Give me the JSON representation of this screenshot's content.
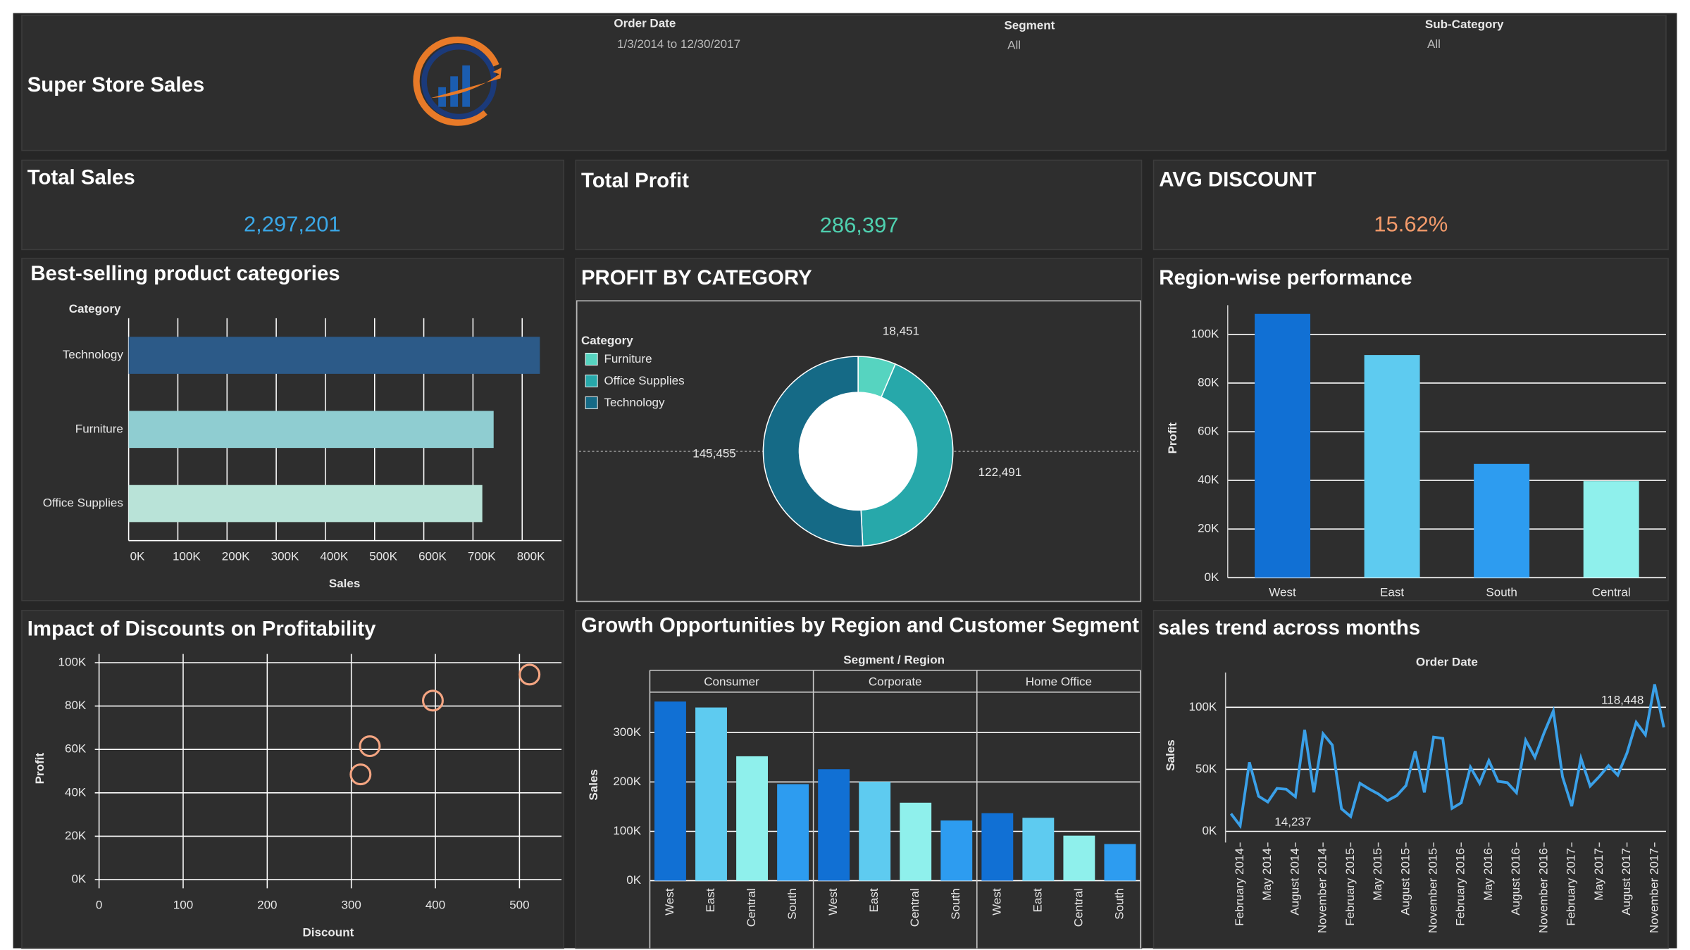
{
  "header": {
    "title": "Super Store Sales",
    "filters": [
      {
        "label": "Order Date",
        "value": "1/3/2014 to 12/30/2017"
      },
      {
        "label": "Segment",
        "value": "All"
      },
      {
        "label": "Sub-Category",
        "value": "All"
      }
    ]
  },
  "kpis": [
    {
      "title": "Total Sales",
      "value": "2,297,201",
      "color": "#3aa8e8"
    },
    {
      "title": "Total Profit",
      "value": "286,397",
      "color": "#4fd1b0"
    },
    {
      "title": "AVG DISCOUNT",
      "value": "15.62%",
      "color": "#f49b6b"
    }
  ],
  "chart_data": [
    {
      "type": "hbar",
      "title": "Best-selling product categories",
      "category_label": "Category",
      "x_label": "Sales",
      "categories": [
        "Technology",
        "Furniture",
        "Office Supplies"
      ],
      "values": [
        836000,
        742000,
        719000
      ],
      "colors": [
        "#2c5a88",
        "#8fcdd1",
        "#b9e3d8"
      ],
      "xlim": [
        0,
        880000
      ],
      "xticks": [
        {
          "value": 0,
          "label": "0K"
        },
        {
          "value": 100000,
          "label": "100K"
        },
        {
          "value": 200000,
          "label": "200K"
        },
        {
          "value": 300000,
          "label": "300K"
        },
        {
          "value": 400000,
          "label": "400K"
        },
        {
          "value": 500000,
          "label": "500K"
        },
        {
          "value": 600000,
          "label": "600K"
        },
        {
          "value": 700000,
          "label": "700K"
        },
        {
          "value": 800000,
          "label": "800K"
        }
      ],
      "grid": true
    },
    {
      "type": "donut",
      "title": "PROFIT BY CATEGORY",
      "legend_title": "Category",
      "categories": [
        "Furniture",
        "Office Supplies",
        "Technology"
      ],
      "values": [
        18451,
        122491,
        145455
      ],
      "value_labels": [
        "18,451",
        "122,491",
        "145,455"
      ],
      "colors": [
        "#56d4c0",
        "#27a8aa",
        "#156a86"
      ]
    },
    {
      "type": "bar",
      "title": "Region-wise performance",
      "y_label": "Profit",
      "categories": [
        "West",
        "East",
        "South",
        "Central"
      ],
      "values": [
        108418,
        91523,
        46749,
        39706
      ],
      "colors": [
        "#1170d4",
        "#5ecbf0",
        "#2d9cf0",
        "#8ff0ec"
      ],
      "ylim": [
        0,
        112000
      ],
      "yticks": [
        {
          "value": 0,
          "label": "0K"
        },
        {
          "value": 20000,
          "label": "20K"
        },
        {
          "value": 40000,
          "label": "40K"
        },
        {
          "value": 60000,
          "label": "60K"
        },
        {
          "value": 80000,
          "label": "80K"
        },
        {
          "value": 100000,
          "label": "100K"
        }
      ],
      "grid": true
    },
    {
      "type": "scatter",
      "title": "Impact of Discounts on Profitability",
      "x_label": "Discount",
      "y_label": "Profit",
      "x": [
        311,
        322,
        397,
        512
      ],
      "values": [
        48500,
        61500,
        82500,
        94500
      ],
      "color": "#f4a582",
      "xlim": [
        -5,
        550
      ],
      "xticks": [
        0,
        100,
        200,
        300,
        400,
        500
      ],
      "ylim": [
        -4000,
        104000
      ],
      "yticks": [
        {
          "value": 0,
          "label": "0K"
        },
        {
          "value": 20000,
          "label": "20K"
        },
        {
          "value": 40000,
          "label": "40K"
        },
        {
          "value": 60000,
          "label": "60K"
        },
        {
          "value": 80000,
          "label": "80K"
        },
        {
          "value": 100000,
          "label": "100K"
        }
      ],
      "grid": true
    },
    {
      "type": "grouped_bar",
      "title": "Growth Opportunities by Region and Customer Segment",
      "header": "Segment / Region",
      "y_label": "Sales",
      "categories": [
        "West",
        "East",
        "Central",
        "South"
      ],
      "colors": [
        "#1170d4",
        "#5ecbf0",
        "#8ff0ec",
        "#2d9cf0"
      ],
      "groups": [
        {
          "name": "Consumer",
          "values": [
            362881,
            350908,
            252031,
            195581
          ]
        },
        {
          "name": "Corporate",
          "values": [
            225855,
            200409,
            157996,
            121886
          ]
        },
        {
          "name": "Home Office",
          "values": [
            136722,
            127464,
            91213,
            74255
          ]
        }
      ],
      "ylim": [
        0,
        382000
      ],
      "yticks": [
        {
          "value": 0,
          "label": "0K"
        },
        {
          "value": 100000,
          "label": "100K"
        },
        {
          "value": 200000,
          "label": "200K"
        },
        {
          "value": 300000,
          "label": "300K"
        }
      ],
      "grid": true
    },
    {
      "type": "line",
      "title": "sales trend across months",
      "x_header": "Order Date",
      "y_label": "Sales",
      "x": [
        null,
        "February 2014",
        null,
        null,
        "May 2014",
        null,
        null,
        "August 2014",
        null,
        null,
        "November 2014",
        null,
        null,
        "February 2015",
        null,
        null,
        "May 2015",
        null,
        null,
        "August 2015",
        null,
        null,
        "November 2015",
        null,
        null,
        "February 2016",
        null,
        null,
        "May 2016",
        null,
        null,
        "August 2016",
        null,
        null,
        "November 2016",
        null,
        null,
        "February 2017",
        null,
        null,
        "May 2017",
        null,
        null,
        "August 2017",
        null,
        null,
        "November 2017",
        null
      ],
      "values": [
        14237,
        4520,
        55691,
        28295,
        23648,
        34595,
        33946,
        27909,
        81777,
        31453,
        78629,
        69546,
        18174,
        11951,
        38726,
        34195,
        30132,
        24797,
        28765,
        36898,
        64596,
        31404,
        75973,
        74920,
        18542,
        22979,
        51716,
        38750,
        56988,
        40345,
        39262,
        31115,
        73410,
        59688,
        79412,
        96999,
        43971,
        20301,
        58872,
        36522,
        44261,
        52981,
        45264,
        63121,
        87867,
        77777,
        118448,
        83829
      ],
      "value_labels": [
        "14,237",
        null,
        null,
        null,
        null,
        null,
        null,
        null,
        null,
        null,
        null,
        null,
        null,
        null,
        null,
        null,
        null,
        null,
        null,
        null,
        null,
        null,
        null,
        null,
        null,
        null,
        null,
        null,
        null,
        null,
        null,
        null,
        null,
        null,
        null,
        null,
        null,
        null,
        null,
        null,
        null,
        null,
        null,
        null,
        null,
        null,
        "118,448",
        null
      ],
      "color": "#3aa0e8",
      "ylim": [
        -9000,
        128000
      ],
      "yticks": [
        {
          "value": 0,
          "label": "0K"
        },
        {
          "value": 50000,
          "label": "50K"
        },
        {
          "value": 100000,
          "label": "100K"
        }
      ],
      "grid": true
    }
  ]
}
